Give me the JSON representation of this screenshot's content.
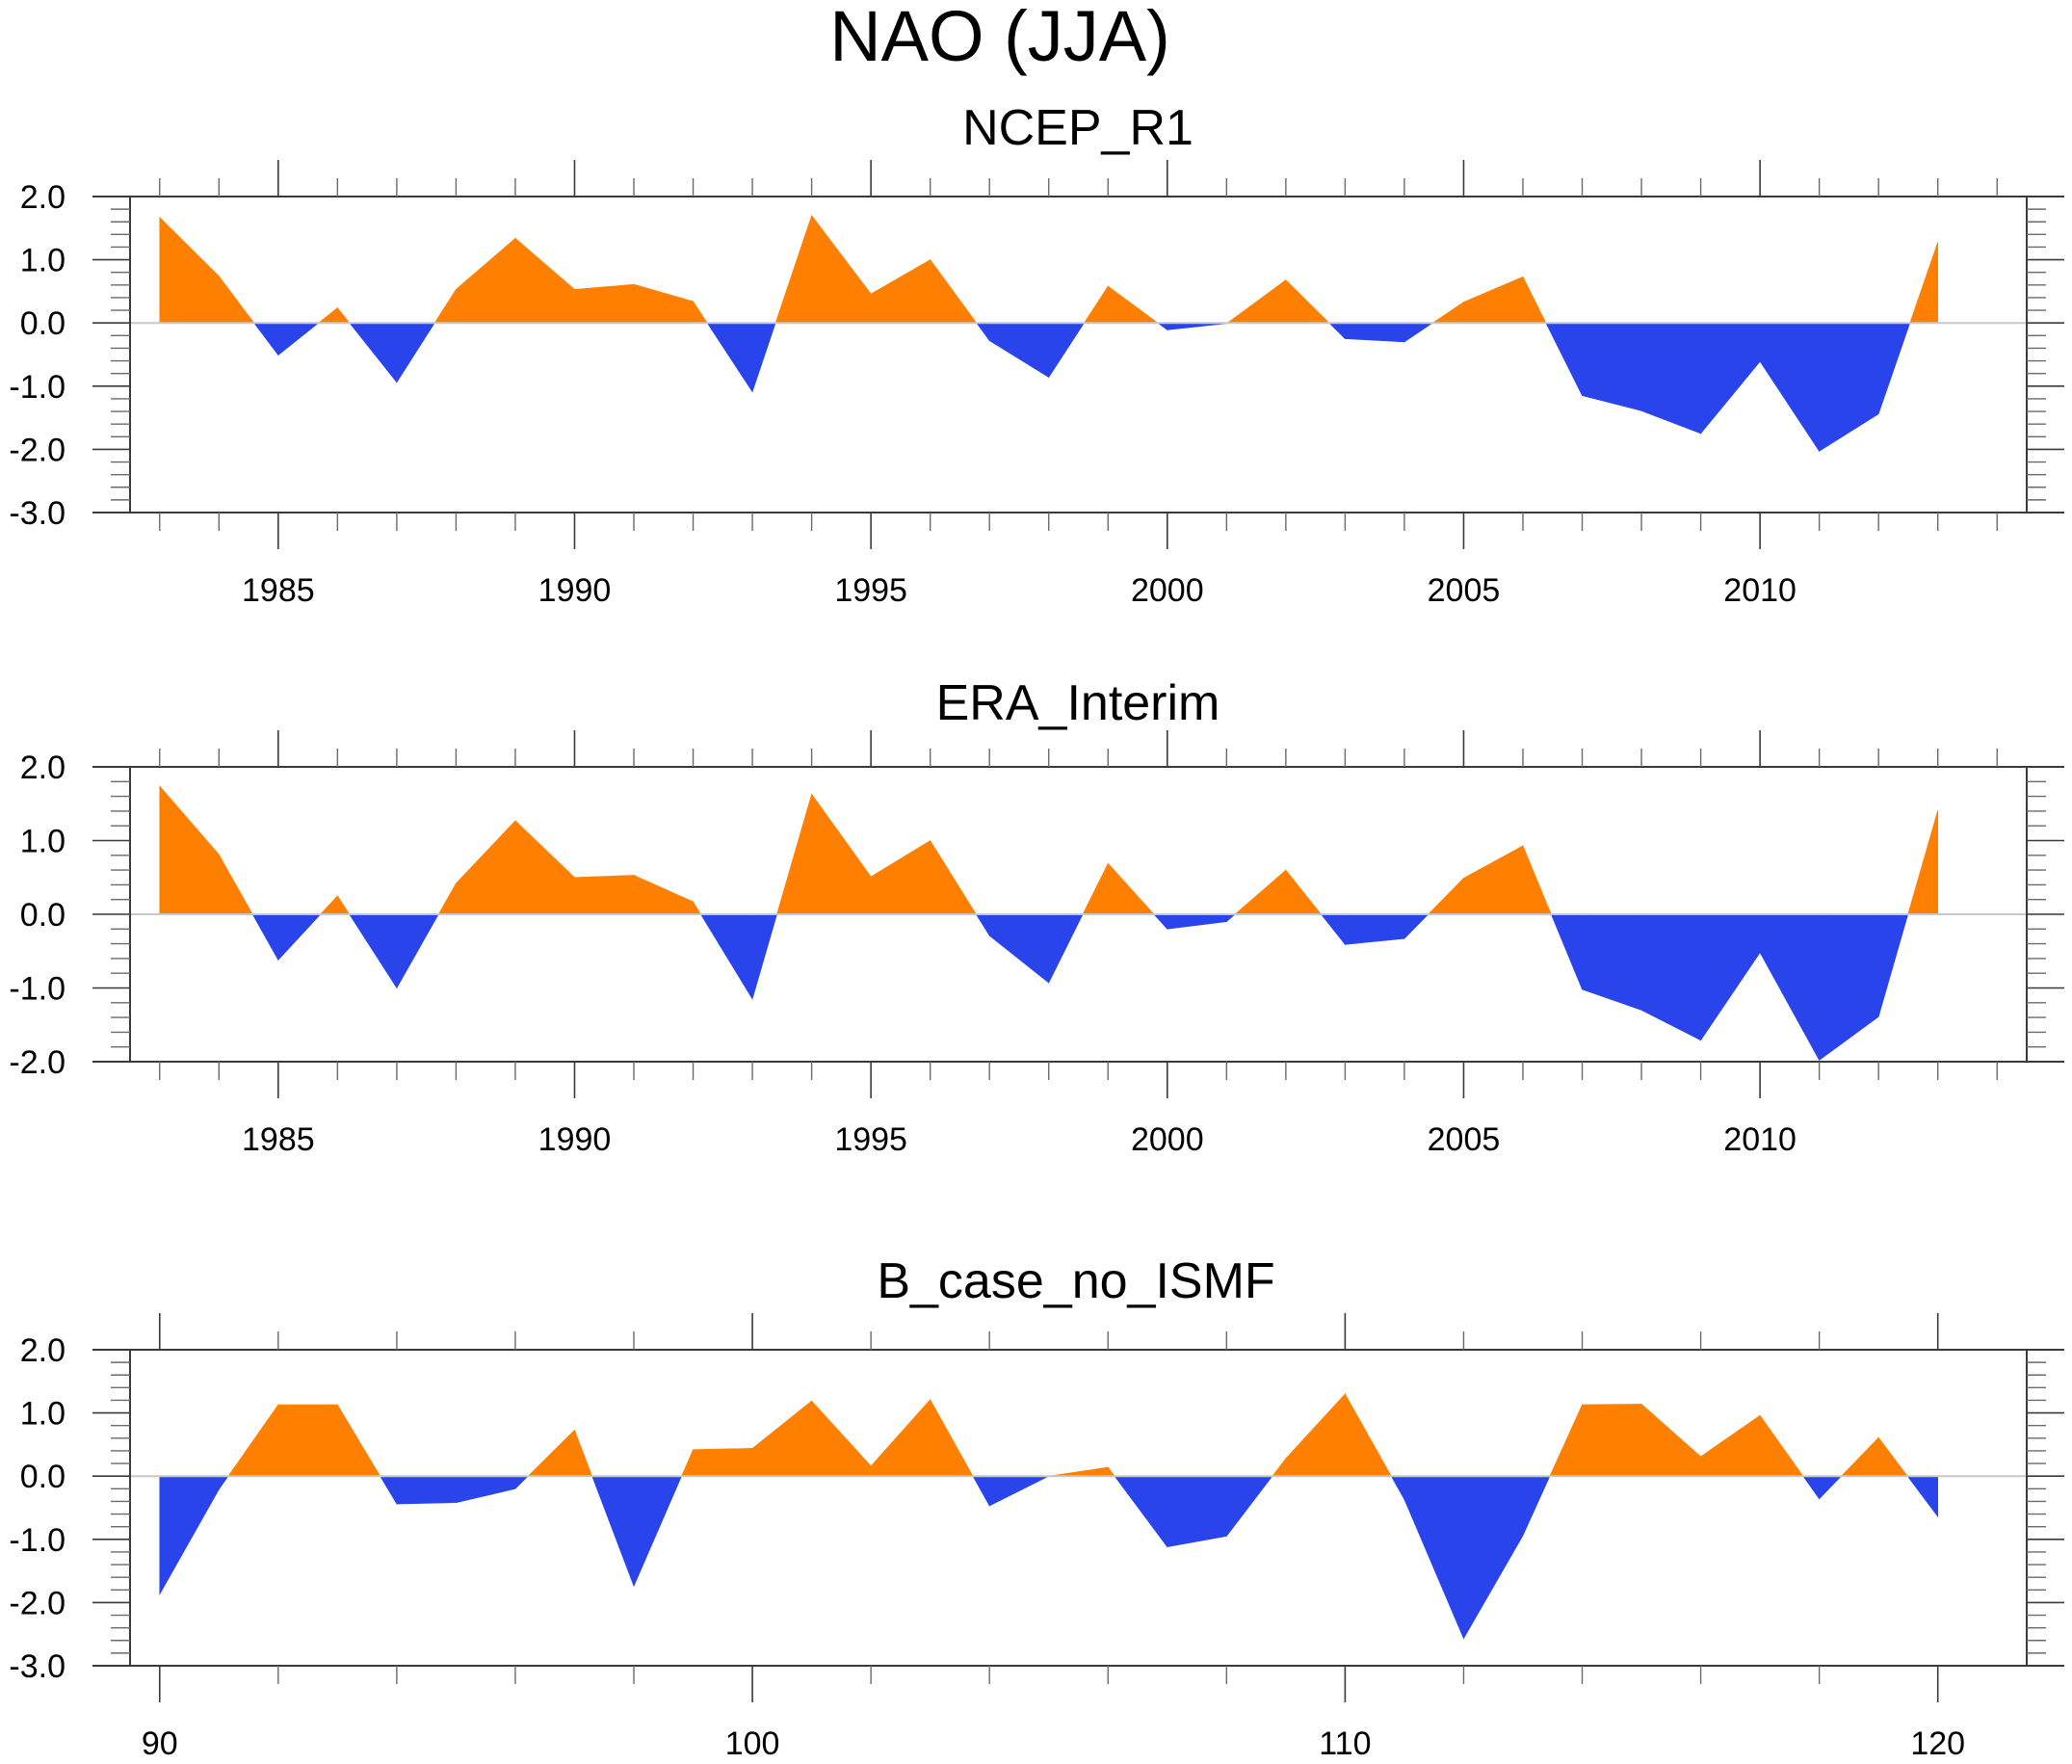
{
  "title": "NAO (JJA)",
  "colors": {
    "positive": "#FF8000",
    "negative": "#2844EA"
  },
  "chart_data": [
    {
      "type": "area",
      "title": "NCEP_R1",
      "xlabel": "",
      "ylabel": "",
      "xlim": [
        1982.5,
        2014.5
      ],
      "ylim": [
        -3.0,
        2.0
      ],
      "xticks_major": [
        1985,
        1990,
        1995,
        2000,
        2005,
        2010
      ],
      "xtick_labels": [
        "1985",
        "1990",
        "1995",
        "2000",
        "2005",
        "2010"
      ],
      "xticks_minor_step": 1,
      "yticks_major": [
        2.0,
        1.0,
        0.0,
        -1.0,
        -2.0,
        -3.0
      ],
      "ytick_labels": [
        "2.0",
        "1.0",
        "0.0",
        "-1.0",
        "-2.0",
        "-3.0"
      ],
      "yticks_minor_step": 0.2,
      "reference_line": 0.0,
      "fill": "above reference orange, below reference blue",
      "x": [
        1983,
        1984,
        1985,
        1986,
        1987,
        1988,
        1989,
        1990,
        1991,
        1992,
        1993,
        1994,
        1995,
        1996,
        1997,
        1998,
        1999,
        2000,
        2001,
        2002,
        2003,
        2004,
        2005,
        2006,
        2007,
        2008,
        2009,
        2010,
        2011,
        2012,
        2013
      ],
      "values": [
        1.67,
        0.74,
        -0.51,
        0.24,
        -0.94,
        0.53,
        1.34,
        0.53,
        0.61,
        0.34,
        -1.09,
        1.7,
        0.46,
        1.0,
        -0.28,
        -0.86,
        0.58,
        -0.11,
        -0.01,
        0.68,
        -0.25,
        -0.3,
        0.33,
        0.73,
        -1.15,
        -1.39,
        -1.75,
        -0.61,
        -2.03,
        -1.44,
        1.28
      ]
    },
    {
      "type": "area",
      "title": "ERA_Interim",
      "xlabel": "",
      "ylabel": "",
      "xlim": [
        1982.5,
        2014.5
      ],
      "ylim": [
        -2.0,
        2.0
      ],
      "xticks_major": [
        1985,
        1990,
        1995,
        2000,
        2005,
        2010
      ],
      "xtick_labels": [
        "1985",
        "1990",
        "1995",
        "2000",
        "2005",
        "2010"
      ],
      "xticks_minor_step": 1,
      "yticks_major": [
        2.0,
        1.0,
        0.0,
        -1.0,
        -2.0
      ],
      "ytick_labels": [
        "2.0",
        "1.0",
        "0.0",
        "-1.0",
        "-2.0"
      ],
      "yticks_minor_step": 0.2,
      "reference_line": 0.0,
      "fill": "above reference orange, below reference blue",
      "x": [
        1983,
        1984,
        1985,
        1986,
        1987,
        1988,
        1989,
        1990,
        1991,
        1992,
        1993,
        1994,
        1995,
        1996,
        1997,
        1998,
        1999,
        2000,
        2001,
        2002,
        2003,
        2004,
        2005,
        2006,
        2007,
        2008,
        2009,
        2010,
        2011,
        2012,
        2013
      ],
      "values": [
        1.74,
        0.81,
        -0.62,
        0.25,
        -1.0,
        0.42,
        1.27,
        0.5,
        0.53,
        0.17,
        -1.15,
        1.63,
        0.51,
        1.0,
        -0.29,
        -0.93,
        0.69,
        -0.2,
        -0.1,
        0.6,
        -0.41,
        -0.33,
        0.49,
        0.93,
        -1.02,
        -1.3,
        -1.71,
        -0.52,
        -1.98,
        -1.39,
        1.41
      ]
    },
    {
      "type": "area",
      "title": "B_case_no_ISMF",
      "xlabel": "",
      "ylabel": "",
      "xlim": [
        89.5,
        121.5
      ],
      "ylim": [
        -3.0,
        2.0
      ],
      "xticks_major": [
        90,
        100,
        110,
        120
      ],
      "xtick_labels": [
        "90",
        "100",
        "110",
        "120"
      ],
      "xticks_minor_step": 2,
      "yticks_major": [
        2.0,
        1.0,
        0.0,
        -1.0,
        -2.0,
        -3.0
      ],
      "ytick_labels": [
        "2.0",
        "1.0",
        "0.0",
        "-1.0",
        "-2.0",
        "-3.0"
      ],
      "yticks_minor_step": 0.2,
      "reference_line": 0.0,
      "fill": "above reference orange, below reference blue",
      "x": [
        90,
        91,
        92,
        93,
        94,
        95,
        96,
        97,
        98,
        99,
        100,
        101,
        102,
        103,
        104,
        105,
        106,
        107,
        108,
        109,
        110,
        111,
        112,
        113,
        114,
        115,
        116,
        117,
        118,
        119,
        120
      ],
      "values": [
        -1.87,
        -0.21,
        1.13,
        1.13,
        -0.44,
        -0.42,
        -0.2,
        0.73,
        -1.74,
        0.42,
        0.44,
        1.19,
        0.16,
        1.21,
        -0.47,
        0.0,
        0.14,
        -1.12,
        -0.95,
        0.28,
        1.3,
        -0.37,
        -2.57,
        -0.94,
        1.13,
        1.14,
        0.31,
        0.96,
        -0.36,
        0.61,
        -0.64
      ]
    }
  ]
}
